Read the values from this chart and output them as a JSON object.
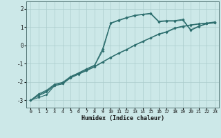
{
  "xlabel": "Humidex (Indice chaleur)",
  "bg_color": "#cce8e8",
  "line_color": "#2d6e6e",
  "grid_color": "#aacccc",
  "xlim": [
    -0.5,
    23.5
  ],
  "ylim": [
    -3.4,
    2.4
  ],
  "xticks": [
    0,
    1,
    2,
    3,
    4,
    5,
    6,
    7,
    8,
    9,
    10,
    11,
    12,
    13,
    14,
    15,
    16,
    17,
    18,
    19,
    20,
    21,
    22,
    23
  ],
  "yticks": [
    -3,
    -2,
    -1,
    0,
    1,
    2
  ],
  "line1_x": [
    0,
    1,
    2,
    3,
    4,
    5,
    6,
    7,
    8,
    9,
    10,
    11,
    12,
    13,
    14,
    15,
    16,
    17,
    18,
    19,
    20,
    21,
    22,
    23
  ],
  "line1_y": [
    -3.0,
    -2.85,
    -2.7,
    -2.2,
    -2.1,
    -1.75,
    -1.55,
    -1.35,
    -1.15,
    -0.9,
    -0.65,
    -0.42,
    -0.22,
    0.02,
    0.22,
    0.42,
    0.62,
    0.75,
    0.95,
    1.05,
    1.12,
    1.18,
    1.22,
    1.28
  ],
  "line2_x": [
    0,
    1,
    2,
    3,
    4,
    5,
    6,
    7,
    8,
    9,
    10,
    11,
    12,
    13,
    14,
    15,
    16,
    17,
    18,
    19,
    20,
    21,
    22,
    23
  ],
  "line2_y": [
    -3.0,
    -2.75,
    -2.55,
    -2.2,
    -2.1,
    -1.78,
    -1.58,
    -1.38,
    -1.18,
    -0.92,
    -0.67,
    -0.44,
    -0.24,
    0.0,
    0.2,
    0.4,
    0.6,
    0.72,
    0.92,
    1.02,
    1.1,
    1.16,
    1.2,
    1.26
  ],
  "line3_x": [
    0,
    1,
    2,
    3,
    4,
    5,
    6,
    7,
    8,
    9,
    10,
    11,
    12,
    13,
    14,
    15,
    16,
    17,
    18,
    19,
    20,
    21,
    22,
    23
  ],
  "line3_y": [
    -3.0,
    -2.7,
    -2.5,
    -2.15,
    -2.05,
    -1.72,
    -1.52,
    -1.3,
    -1.1,
    -0.3,
    1.2,
    1.35,
    1.5,
    1.62,
    1.68,
    1.72,
    1.28,
    1.32,
    1.32,
    1.38,
    0.82,
    1.02,
    1.18,
    1.22
  ],
  "line4_x": [
    0,
    1,
    2,
    3,
    4,
    5,
    6,
    7,
    8,
    9,
    10,
    11,
    12,
    13,
    14,
    15,
    16,
    17,
    18,
    19,
    20,
    21,
    22,
    23
  ],
  "line4_y": [
    -3.0,
    -2.65,
    -2.45,
    -2.12,
    -2.02,
    -1.7,
    -1.5,
    -1.28,
    -1.08,
    -0.18,
    1.22,
    1.38,
    1.52,
    1.64,
    1.7,
    1.75,
    1.32,
    1.35,
    1.35,
    1.42,
    0.85,
    1.05,
    1.2,
    1.25
  ]
}
